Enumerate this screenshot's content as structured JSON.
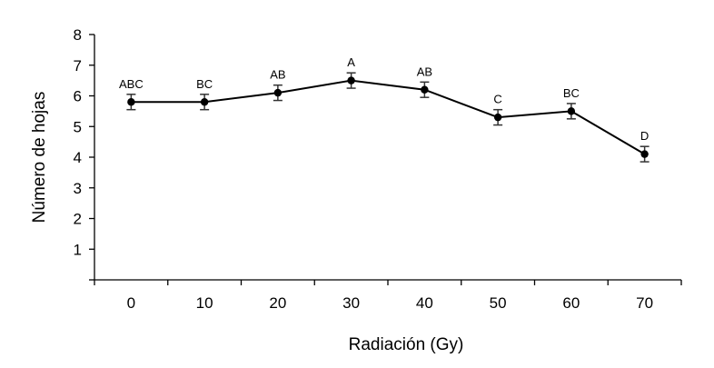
{
  "chart_data": {
    "type": "line",
    "title": "",
    "xlabel": "Radiación (Gy)",
    "ylabel": "Número de hojas",
    "x": [
      0,
      10,
      20,
      30,
      40,
      50,
      60,
      70
    ],
    "categories": [
      "0",
      "10",
      "20",
      "30",
      "40",
      "50",
      "60",
      "70"
    ],
    "yticks": [
      "1",
      "2",
      "3",
      "4",
      "5",
      "6",
      "7",
      "8"
    ],
    "ylim": [
      0,
      8
    ],
    "series": [
      {
        "values": [
          5.8,
          5.8,
          6.1,
          6.5,
          6.2,
          5.3,
          5.5,
          4.1
        ],
        "errors": [
          0.25,
          0.25,
          0.25,
          0.25,
          0.25,
          0.25,
          0.25,
          0.25
        ],
        "labels": [
          "ABC",
          "BC",
          "AB",
          "A",
          "AB",
          "C",
          "BC",
          "D"
        ],
        "color": "#000000"
      }
    ],
    "grid": false,
    "legend": "none"
  }
}
